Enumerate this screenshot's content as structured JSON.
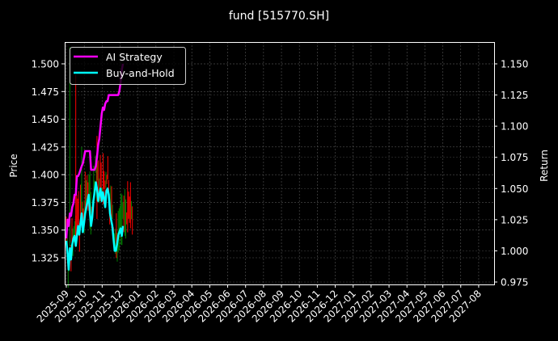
{
  "chart_data": {
    "type": "line",
    "title": "fund [515770.SH]",
    "xlabel": "",
    "ylabel": "Price",
    "ylabel_right": "Return",
    "ylim": [
      1.305,
      1.52
    ],
    "ylim_right": [
      0.972,
      1.165
    ],
    "grid": true,
    "legend_position": "upper left",
    "yticks": [
      "1.325",
      "1.350",
      "1.375",
      "1.400",
      "1.425",
      "1.450",
      "1.475",
      "1.500"
    ],
    "yticks_right": [
      "0.975",
      "1.000",
      "1.025",
      "1.050",
      "1.075",
      "1.100",
      "1.125",
      "1.150"
    ],
    "xticks": [
      "2025-09",
      "2025-10",
      "2025-11",
      "2025-12",
      "2026-01",
      "2026-02",
      "2026-03",
      "2026-04",
      "2026-05",
      "2026-06",
      "2026-07",
      "2026-08",
      "2026-09",
      "2026-10",
      "2026-11",
      "2026-12",
      "2027-01",
      "2027-02",
      "2027-03",
      "2027-04",
      "2027-05",
      "2027-06",
      "2027-07",
      "2027-08"
    ],
    "legend": [
      {
        "label": "AI Strategy",
        "color": "#ff00ff"
      },
      {
        "label": "Buy-and-Hold",
        "color": "#00ffff"
      }
    ],
    "series": [
      {
        "name": "AI Strategy",
        "axis": "right",
        "color": "#ff00ff",
        "x_day": [
          0,
          2,
          4,
          6,
          8,
          10,
          12,
          14,
          16,
          18,
          20,
          22,
          24,
          26,
          28,
          30,
          32,
          34,
          36,
          38,
          40,
          42,
          44,
          46,
          48,
          50,
          52,
          54,
          56,
          58,
          60,
          62,
          64,
          66,
          68,
          70,
          72,
          74,
          76,
          78,
          80,
          82,
          84,
          86,
          88,
          90,
          92,
          94,
          96,
          98,
          100,
          102,
          104,
          106,
          108,
          110,
          112,
          114
        ],
        "values": [
          1.01,
          1.025,
          1.02,
          1.03,
          1.028,
          1.035,
          1.038,
          1.045,
          1.045,
          1.06,
          1.06,
          1.062,
          1.065,
          1.068,
          1.07,
          1.075,
          1.08,
          1.08,
          1.08,
          1.08,
          1.08,
          1.065,
          1.065,
          1.065,
          1.065,
          1.068,
          1.075,
          1.085,
          1.09,
          1.1,
          1.11,
          1.115,
          1.113,
          1.118,
          1.12,
          1.12,
          1.125,
          1.125,
          1.125,
          1.125,
          1.125,
          1.125,
          1.125,
          1.125,
          1.125,
          1.128,
          1.135,
          1.145,
          1.15,
          1.16,
          1.16,
          1.16,
          1.16,
          1.16,
          1.16,
          1.16,
          1.16,
          1.16
        ]
      },
      {
        "name": "Buy-and-Hold",
        "axis": "right",
        "color": "#00ffff",
        "x_day": [
          0,
          2,
          4,
          6,
          8,
          10,
          12,
          14,
          16,
          18,
          20,
          22,
          24,
          26,
          28,
          30,
          32,
          34,
          36,
          38,
          40,
          42,
          44,
          46,
          48,
          50,
          52,
          54,
          56,
          58,
          60,
          62,
          64,
          66,
          68,
          70,
          72,
          74,
          76,
          78,
          80,
          82,
          84,
          86,
          88,
          90,
          92,
          94,
          96,
          98,
          100,
          102,
          104,
          106,
          108,
          110,
          112,
          114
        ],
        "values": [
          1.008,
          0.998,
          0.985,
          1.002,
          0.993,
          1.005,
          1.01,
          1.012,
          1.004,
          1.012,
          1.02,
          1.013,
          1.022,
          1.03,
          1.015,
          1.022,
          1.03,
          1.035,
          1.04,
          1.045,
          1.03,
          1.02,
          1.027,
          1.04,
          1.047,
          1.055,
          1.05,
          1.04,
          1.045,
          1.05,
          1.04,
          1.047,
          1.042,
          1.035,
          1.048,
          1.05,
          1.045,
          1.03,
          1.025,
          1.02,
          1.01,
          1.0,
          1.0,
          1.005,
          1.012,
          1.015,
          1.018,
          1.012,
          1.02,
          1.022,
          1.022,
          1.022,
          1.022,
          1.022,
          1.022,
          1.022,
          1.022,
          1.022
        ]
      },
      {
        "name": "Price (OHLC sticks)",
        "axis": "left",
        "type": "candlestick",
        "up_color": "#008000",
        "down_color": "#ff0000",
        "note": "thin high-low sticks, green up / red down, approx. 1.32-1.50 range over 2025-09 to 2025-12"
      }
    ]
  }
}
